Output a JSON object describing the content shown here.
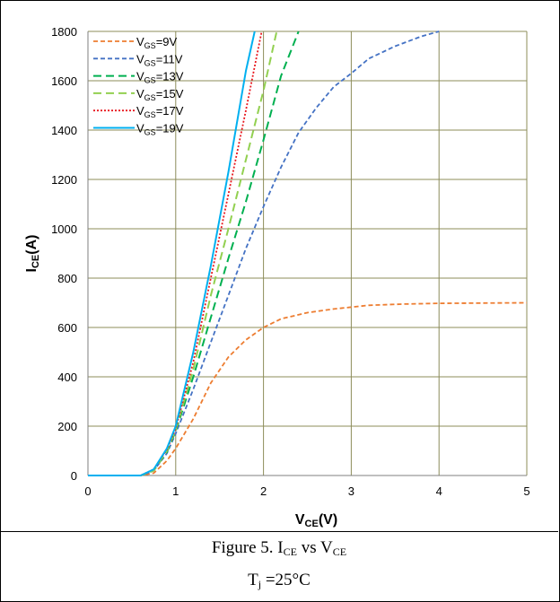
{
  "caption": {
    "line1_prefix": "Figure 5. I",
    "line1_sub1": "CE",
    "line1_mid": " vs V",
    "line1_sub2": "CE",
    "line2_prefix": "T",
    "line2_sub": "j",
    "line2_suffix": " =25°C"
  },
  "chart_data": {
    "type": "line",
    "title": "",
    "xlabel_main": "V",
    "xlabel_sub": "CE",
    "xlabel_suffix": "(V)",
    "ylabel_main": "I",
    "ylabel_sub": "CE",
    "ylabel_suffix": "(A)",
    "xlim": [
      0,
      5
    ],
    "ylim": [
      0,
      1800
    ],
    "xticks": [
      0,
      1,
      2,
      3,
      4,
      5
    ],
    "yticks": [
      0,
      200,
      400,
      600,
      800,
      1000,
      1200,
      1400,
      1600,
      1800
    ],
    "grid": true,
    "legend_position": "top-left",
    "series": [
      {
        "legend_main": "V",
        "legend_sub": "GS",
        "legend_suffix": "=9V",
        "color": "#ED7D31",
        "dash": "5,3",
        "width": 1.8,
        "points": [
          [
            0,
            0
          ],
          [
            0.6,
            0
          ],
          [
            0.75,
            10
          ],
          [
            0.9,
            60
          ],
          [
            1.0,
            110
          ],
          [
            1.2,
            230
          ],
          [
            1.4,
            375
          ],
          [
            1.6,
            480
          ],
          [
            1.8,
            550
          ],
          [
            2.0,
            600
          ],
          [
            2.2,
            635
          ],
          [
            2.5,
            660
          ],
          [
            2.8,
            675
          ],
          [
            3.2,
            690
          ],
          [
            3.6,
            695
          ],
          [
            4.0,
            698
          ],
          [
            4.5,
            699
          ],
          [
            5.0,
            700
          ]
        ]
      },
      {
        "legend_main": "V",
        "legend_sub": "GS",
        "legend_suffix": "=11V",
        "color": "#4472C4",
        "dash": "5,3",
        "width": 1.8,
        "points": [
          [
            0,
            0
          ],
          [
            0.6,
            0
          ],
          [
            0.75,
            20
          ],
          [
            0.9,
            90
          ],
          [
            1.0,
            170
          ],
          [
            1.2,
            350
          ],
          [
            1.4,
            540
          ],
          [
            1.6,
            730
          ],
          [
            1.8,
            920
          ],
          [
            2.0,
            1090
          ],
          [
            2.2,
            1250
          ],
          [
            2.4,
            1390
          ],
          [
            2.6,
            1490
          ],
          [
            2.8,
            1575
          ],
          [
            3.0,
            1630
          ],
          [
            3.2,
            1690
          ],
          [
            3.5,
            1740
          ],
          [
            3.8,
            1780
          ],
          [
            4.0,
            1800
          ]
        ]
      },
      {
        "legend_main": "V",
        "legend_sub": "GS",
        "legend_suffix": "=13V",
        "color": "#00B050",
        "dash": "9,5",
        "width": 2,
        "points": [
          [
            0,
            0
          ],
          [
            0.6,
            0
          ],
          [
            0.75,
            20
          ],
          [
            0.9,
            95
          ],
          [
            1.0,
            180
          ],
          [
            1.2,
            400
          ],
          [
            1.4,
            640
          ],
          [
            1.6,
            880
          ],
          [
            1.8,
            1110
          ],
          [
            2.0,
            1360
          ],
          [
            2.2,
            1620
          ],
          [
            2.4,
            1800
          ]
        ]
      },
      {
        "legend_main": "V",
        "legend_sub": "GS",
        "legend_suffix": "=15V",
        "color": "#92D050",
        "dash": "9,5",
        "width": 2,
        "points": [
          [
            0,
            0
          ],
          [
            0.6,
            0
          ],
          [
            0.75,
            20
          ],
          [
            0.9,
            100
          ],
          [
            1.0,
            185
          ],
          [
            1.2,
            430
          ],
          [
            1.4,
            730
          ],
          [
            1.6,
            1000
          ],
          [
            1.8,
            1280
          ],
          [
            2.0,
            1560
          ],
          [
            2.15,
            1800
          ]
        ]
      },
      {
        "legend_main": "V",
        "legend_sub": "GS",
        "legend_suffix": "=17V",
        "color": "#E8171E",
        "dash": "2,2",
        "width": 1.8,
        "points": [
          [
            0,
            0
          ],
          [
            0.6,
            0
          ],
          [
            0.75,
            25
          ],
          [
            0.9,
            105
          ],
          [
            1.0,
            190
          ],
          [
            1.2,
            460
          ],
          [
            1.4,
            800
          ],
          [
            1.6,
            1140
          ],
          [
            1.8,
            1480
          ],
          [
            1.98,
            1800
          ]
        ]
      },
      {
        "legend_main": "V",
        "legend_sub": "GS",
        "legend_suffix": "=19V",
        "color": "#00B0F0",
        "dash": "",
        "width": 2,
        "points": [
          [
            0,
            0
          ],
          [
            0.6,
            0
          ],
          [
            0.75,
            25
          ],
          [
            0.9,
            110
          ],
          [
            1.0,
            200
          ],
          [
            1.2,
            500
          ],
          [
            1.4,
            850
          ],
          [
            1.6,
            1230
          ],
          [
            1.8,
            1640
          ],
          [
            1.9,
            1800
          ]
        ]
      }
    ]
  }
}
